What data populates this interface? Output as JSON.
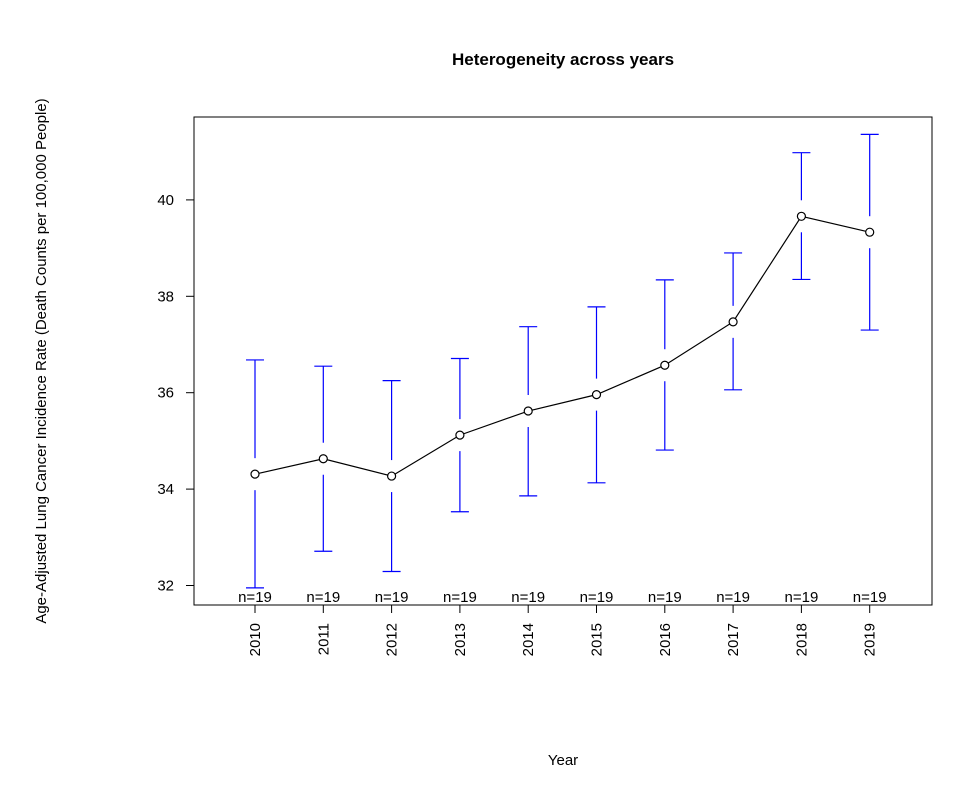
{
  "chart_data": {
    "type": "line",
    "title": "Heterogeneity across years",
    "xlabel": "Year",
    "ylabel": "Age-Adjusted Lung Cancer Incidence Rate (Death Counts per 100,000 People)",
    "categories": [
      "2010",
      "2011",
      "2012",
      "2013",
      "2014",
      "2015",
      "2016",
      "2017",
      "2018",
      "2019"
    ],
    "series": [
      {
        "values": [
          34.31,
          34.63,
          34.27,
          35.12,
          35.62,
          35.96,
          36.57,
          37.47,
          39.66,
          39.33
        ],
        "lower": [
          31.95,
          32.71,
          32.29,
          33.53,
          33.86,
          34.13,
          34.81,
          36.06,
          38.35,
          37.3
        ],
        "upper": [
          36.68,
          36.55,
          36.25,
          36.71,
          37.37,
          37.78,
          38.34,
          38.9,
          40.98,
          41.36
        ]
      }
    ],
    "n_labels": [
      "n=19",
      "n=19",
      "n=19",
      "n=19",
      "n=19",
      "n=19",
      "n=19",
      "n=19",
      "n=19",
      "n=19"
    ],
    "yticks": [
      "32",
      "34",
      "36",
      "38",
      "40"
    ],
    "ylim": [
      31.6,
      41.7
    ],
    "grid": false,
    "colors": {
      "line": "#000000",
      "error_bars": "#0000ff",
      "axes": "#000000"
    }
  }
}
